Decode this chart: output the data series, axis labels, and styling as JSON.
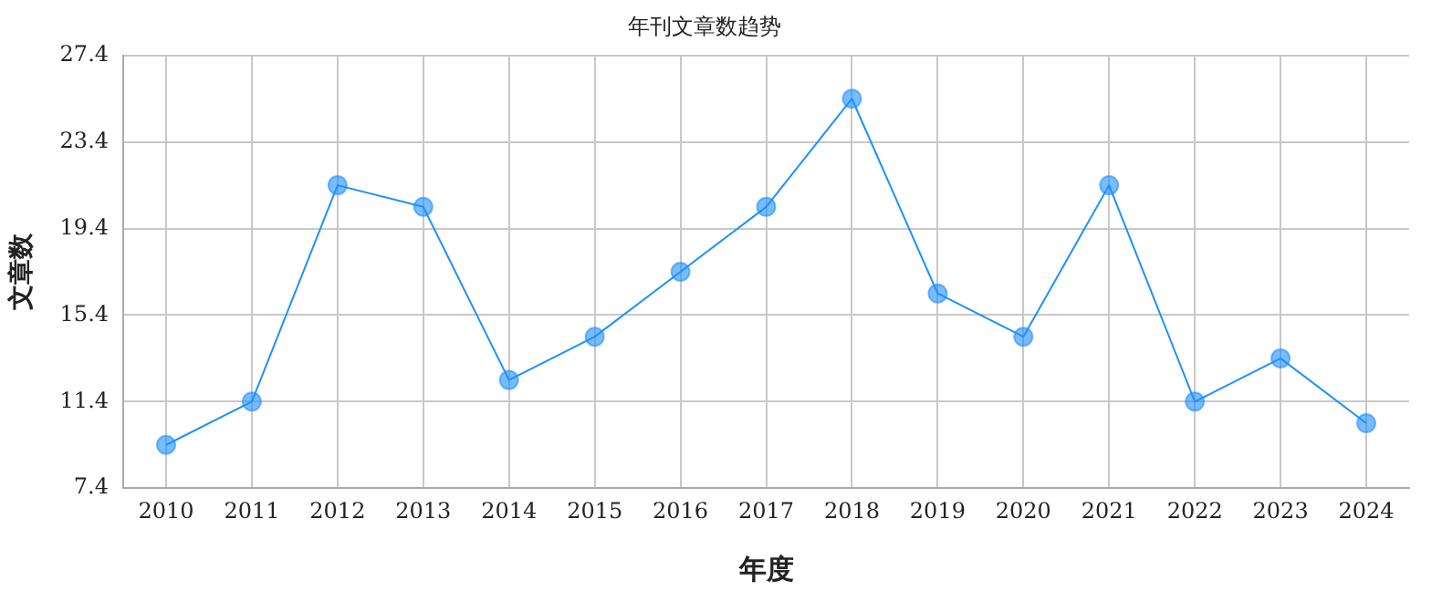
{
  "chart_data": {
    "type": "line",
    "title": "年刊文章数趋势",
    "xlabel": "年度",
    "ylabel": "文章数",
    "categories": [
      "2010",
      "2011",
      "2012",
      "2013",
      "2014",
      "2015",
      "2016",
      "2017",
      "2018",
      "2019",
      "2020",
      "2021",
      "2022",
      "2023",
      "2024"
    ],
    "series": [
      {
        "color": "#1e90ff",
        "values": [
          9.4,
          11.4,
          21.4,
          20.4,
          12.4,
          14.4,
          17.4,
          20.4,
          25.4,
          16.4,
          14.4,
          21.4,
          11.4,
          13.4,
          10.4
        ]
      }
    ],
    "ylim": [
      7.4,
      27.4
    ],
    "yticks": [
      7.4,
      11.4,
      15.4,
      19.4,
      23.4,
      27.4
    ],
    "grid": true,
    "marker": "circle",
    "line_style": "solid"
  }
}
